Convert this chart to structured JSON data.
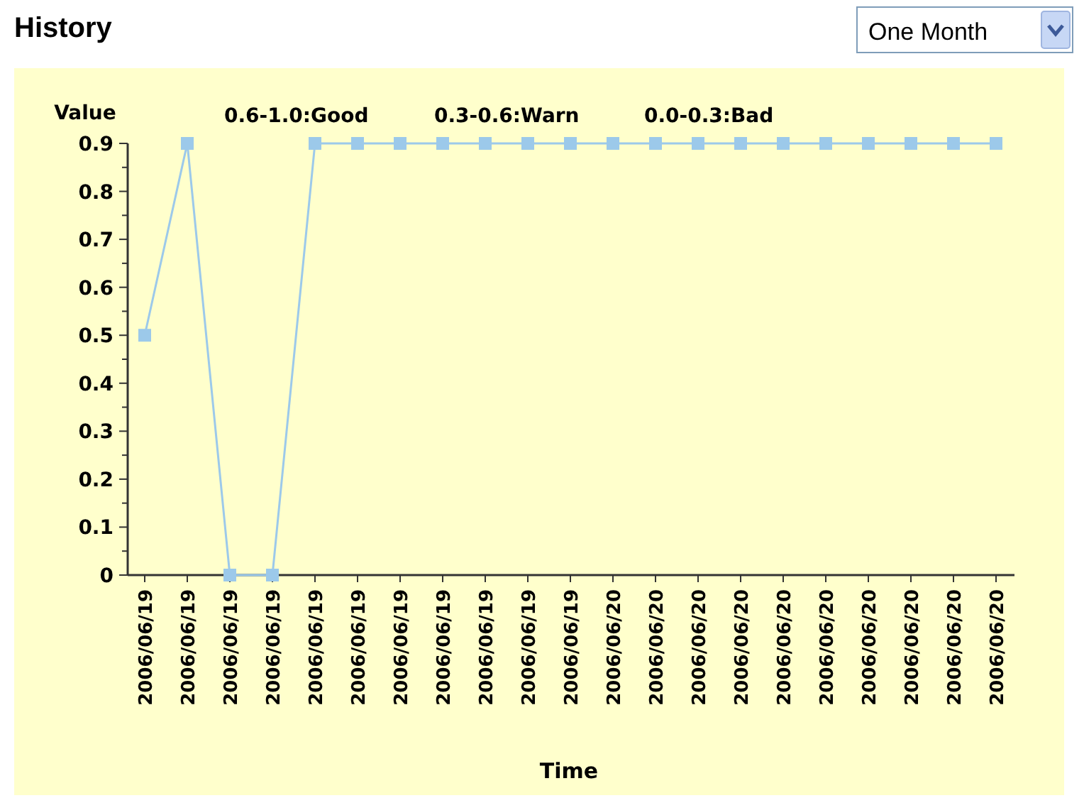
{
  "chart_data": {
    "type": "line",
    "title": "History",
    "xlabel": "Time",
    "ylabel": "Value",
    "categories": [
      "2006/06/19",
      "2006/06/19",
      "2006/06/19",
      "2006/06/19",
      "2006/06/19",
      "2006/06/19",
      "2006/06/19",
      "2006/06/19",
      "2006/06/19",
      "2006/06/19",
      "2006/06/19",
      "2006/06/20",
      "2006/06/20",
      "2006/06/20",
      "2006/06/20",
      "2006/06/20",
      "2006/06/20",
      "2006/06/20",
      "2006/06/20",
      "2006/06/20",
      "2006/06/20"
    ],
    "series": [
      {
        "color": "#9cc9ea",
        "values": [
          0.5,
          0.9,
          0,
          0,
          0.9,
          0.9,
          0.9,
          0.9,
          0.9,
          0.9,
          0.9,
          0.9,
          0.9,
          0.9,
          0.9,
          0.9,
          0.9,
          0.9,
          0.9,
          0.9,
          0.9
        ]
      }
    ],
    "ylim": [
      0,
      0.9
    ],
    "yticks": [
      0,
      0.1,
      0.2,
      0.3,
      0.4,
      0.5,
      0.6,
      0.7,
      0.8,
      0.9
    ],
    "marker": "square",
    "grid": false,
    "annotations": [
      "0.6-1.0:Good",
      "0.3-0.6:Warn",
      "0.0-0.3:Bad",
      "One Month"
    ]
  }
}
